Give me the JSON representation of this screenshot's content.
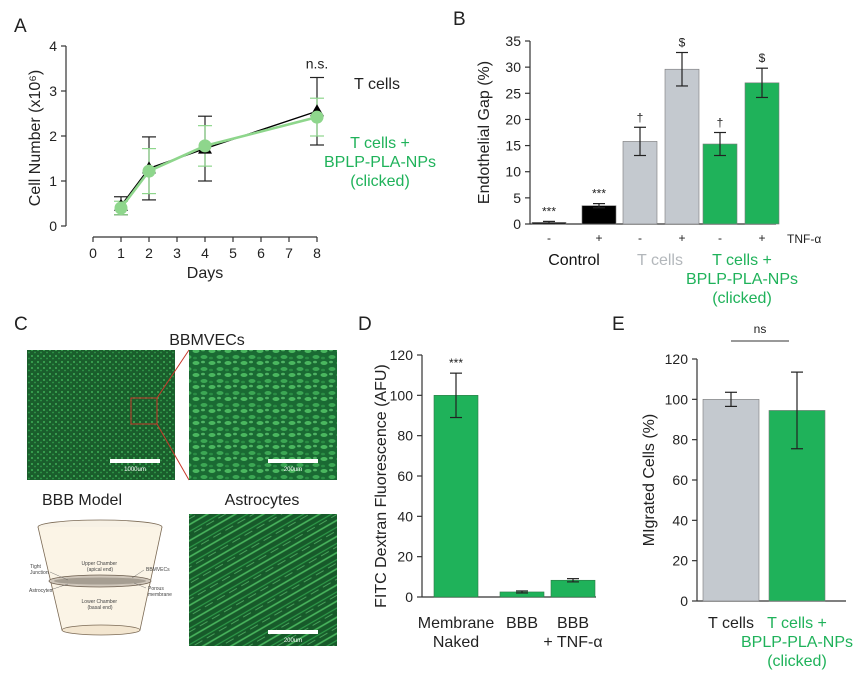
{
  "panels": {
    "a": "A",
    "b": "B",
    "c": "C",
    "d": "D",
    "e": "E"
  },
  "colors": {
    "green": "#1fb25a",
    "green_text": "#1fb25a",
    "gray": "#c4c9cf",
    "black": "#000000",
    "light_green": "#8ed68c",
    "tissue_dark": "#0f3f1f"
  },
  "chart_data": [
    {
      "id": "A",
      "type": "line",
      "xlabel": "Days",
      "ylabel": "Cell Number (x10⁶)",
      "xlim": [
        0,
        8
      ],
      "ylim": [
        0,
        4
      ],
      "xticks": [
        "0",
        "1",
        "2",
        "3",
        "4",
        "5",
        "6",
        "7",
        "8"
      ],
      "yticks": [
        "0",
        "1",
        "2",
        "3",
        "4"
      ],
      "annotation": "n.s.",
      "series": [
        {
          "name": "T cells",
          "color": "#000000",
          "x": [
            1,
            2,
            4,
            8
          ],
          "y": [
            0.45,
            1.28,
            1.72,
            2.55
          ],
          "err": [
            0.2,
            0.7,
            0.72,
            0.75
          ]
        },
        {
          "name": "T cells + BPLP-PLA-NPs (clicked)",
          "color": "#8ed68c",
          "x": [
            1,
            2,
            4,
            8
          ],
          "y": [
            0.4,
            1.22,
            1.78,
            2.42
          ],
          "err": [
            0.15,
            0.5,
            0.45,
            0.42
          ]
        }
      ],
      "legend": [
        {
          "lines": [
            "T cells"
          ],
          "color": "#222222"
        },
        {
          "lines": [
            "T cells +",
            "BPLP-PLA-NPs",
            "(clicked)"
          ],
          "color": "#1fb25a"
        }
      ]
    },
    {
      "id": "B",
      "type": "bar",
      "ylabel": "Endothelial Gap (%)",
      "ylim": [
        0,
        35
      ],
      "yticks": [
        "0",
        "5",
        "10",
        "15",
        "20",
        "25",
        "30",
        "35"
      ],
      "tnf_label": "TNF-α",
      "bars": [
        {
          "tick": "-",
          "value": 0.3,
          "err": 0.2,
          "color": "#000000",
          "sig": "***"
        },
        {
          "tick": "+",
          "value": 3.5,
          "err": 0.4,
          "color": "#000000",
          "sig": "***"
        },
        {
          "tick": "-",
          "value": 15.8,
          "err": 2.7,
          "color": "#c4c9cf",
          "sig": "†"
        },
        {
          "tick": "+",
          "value": 29.6,
          "err": 3.2,
          "color": "#c4c9cf",
          "sig": "$"
        },
        {
          "tick": "-",
          "value": 15.3,
          "err": 2.2,
          "color": "#1fb25a",
          "sig": "†"
        },
        {
          "tick": "+",
          "value": 27.0,
          "err": 2.8,
          "color": "#1fb25a",
          "sig": "$"
        }
      ],
      "groups": [
        {
          "lines": [
            "Control"
          ],
          "color": "#111111"
        },
        {
          "lines": [
            "T cells"
          ],
          "color": "#b3b7bb"
        },
        {
          "lines": [
            "T cells +",
            "BPLP-PLA-NPs",
            "(clicked)"
          ],
          "color": "#1fb25a"
        }
      ]
    },
    {
      "id": "D",
      "type": "bar",
      "ylabel": "FITC Dextran Fluorescence (AFU)",
      "ylim": [
        0,
        120
      ],
      "yticks": [
        "0",
        "20",
        "40",
        "60",
        "80",
        "100",
        "120"
      ],
      "categories": [
        [
          "Membrane",
          "Naked"
        ],
        [
          "BBB"
        ],
        [
          "BBB",
          "+ TNF-α"
        ]
      ],
      "values": [
        100,
        2.5,
        8.3
      ],
      "errors": [
        11,
        0.5,
        0.8
      ],
      "sig": [
        "***",
        "",
        ""
      ],
      "color": "#1fb25a"
    },
    {
      "id": "E",
      "type": "bar",
      "ylabel": "MIgrated Cells (%)",
      "ylim": [
        0,
        120
      ],
      "yticks": [
        "0",
        "20",
        "40",
        "60",
        "80",
        "100",
        "120"
      ],
      "categories": [
        [
          "T cells"
        ],
        [
          "T cells +",
          "BPLP-PLA-NPs",
          "(clicked)"
        ]
      ],
      "category_colors": [
        "#222222",
        "#1fb25a"
      ],
      "values": [
        100,
        94.5
      ],
      "errors": [
        3.5,
        19
      ],
      "bar_colors": [
        "#c4c9cf",
        "#1fb25a"
      ],
      "bracket_label": "ns"
    }
  ],
  "panel_c": {
    "title_top": "BBMVECs",
    "title_model": "BBB Model",
    "title_astro": "Astrocytes",
    "scale_left": "1000um",
    "scale_right": "200um",
    "scale_astro": "200um",
    "diagram_labels": {
      "upper": [
        "Upper Chamber",
        "(apical end)"
      ],
      "lower": [
        "Lower Chamber",
        "(basal end)"
      ],
      "tight": [
        "Tight",
        "Junction"
      ],
      "bbmvecs": "BBMVECs",
      "astrocytes": "Astrocytes",
      "porous": [
        "Porous",
        "membrane"
      ]
    }
  }
}
